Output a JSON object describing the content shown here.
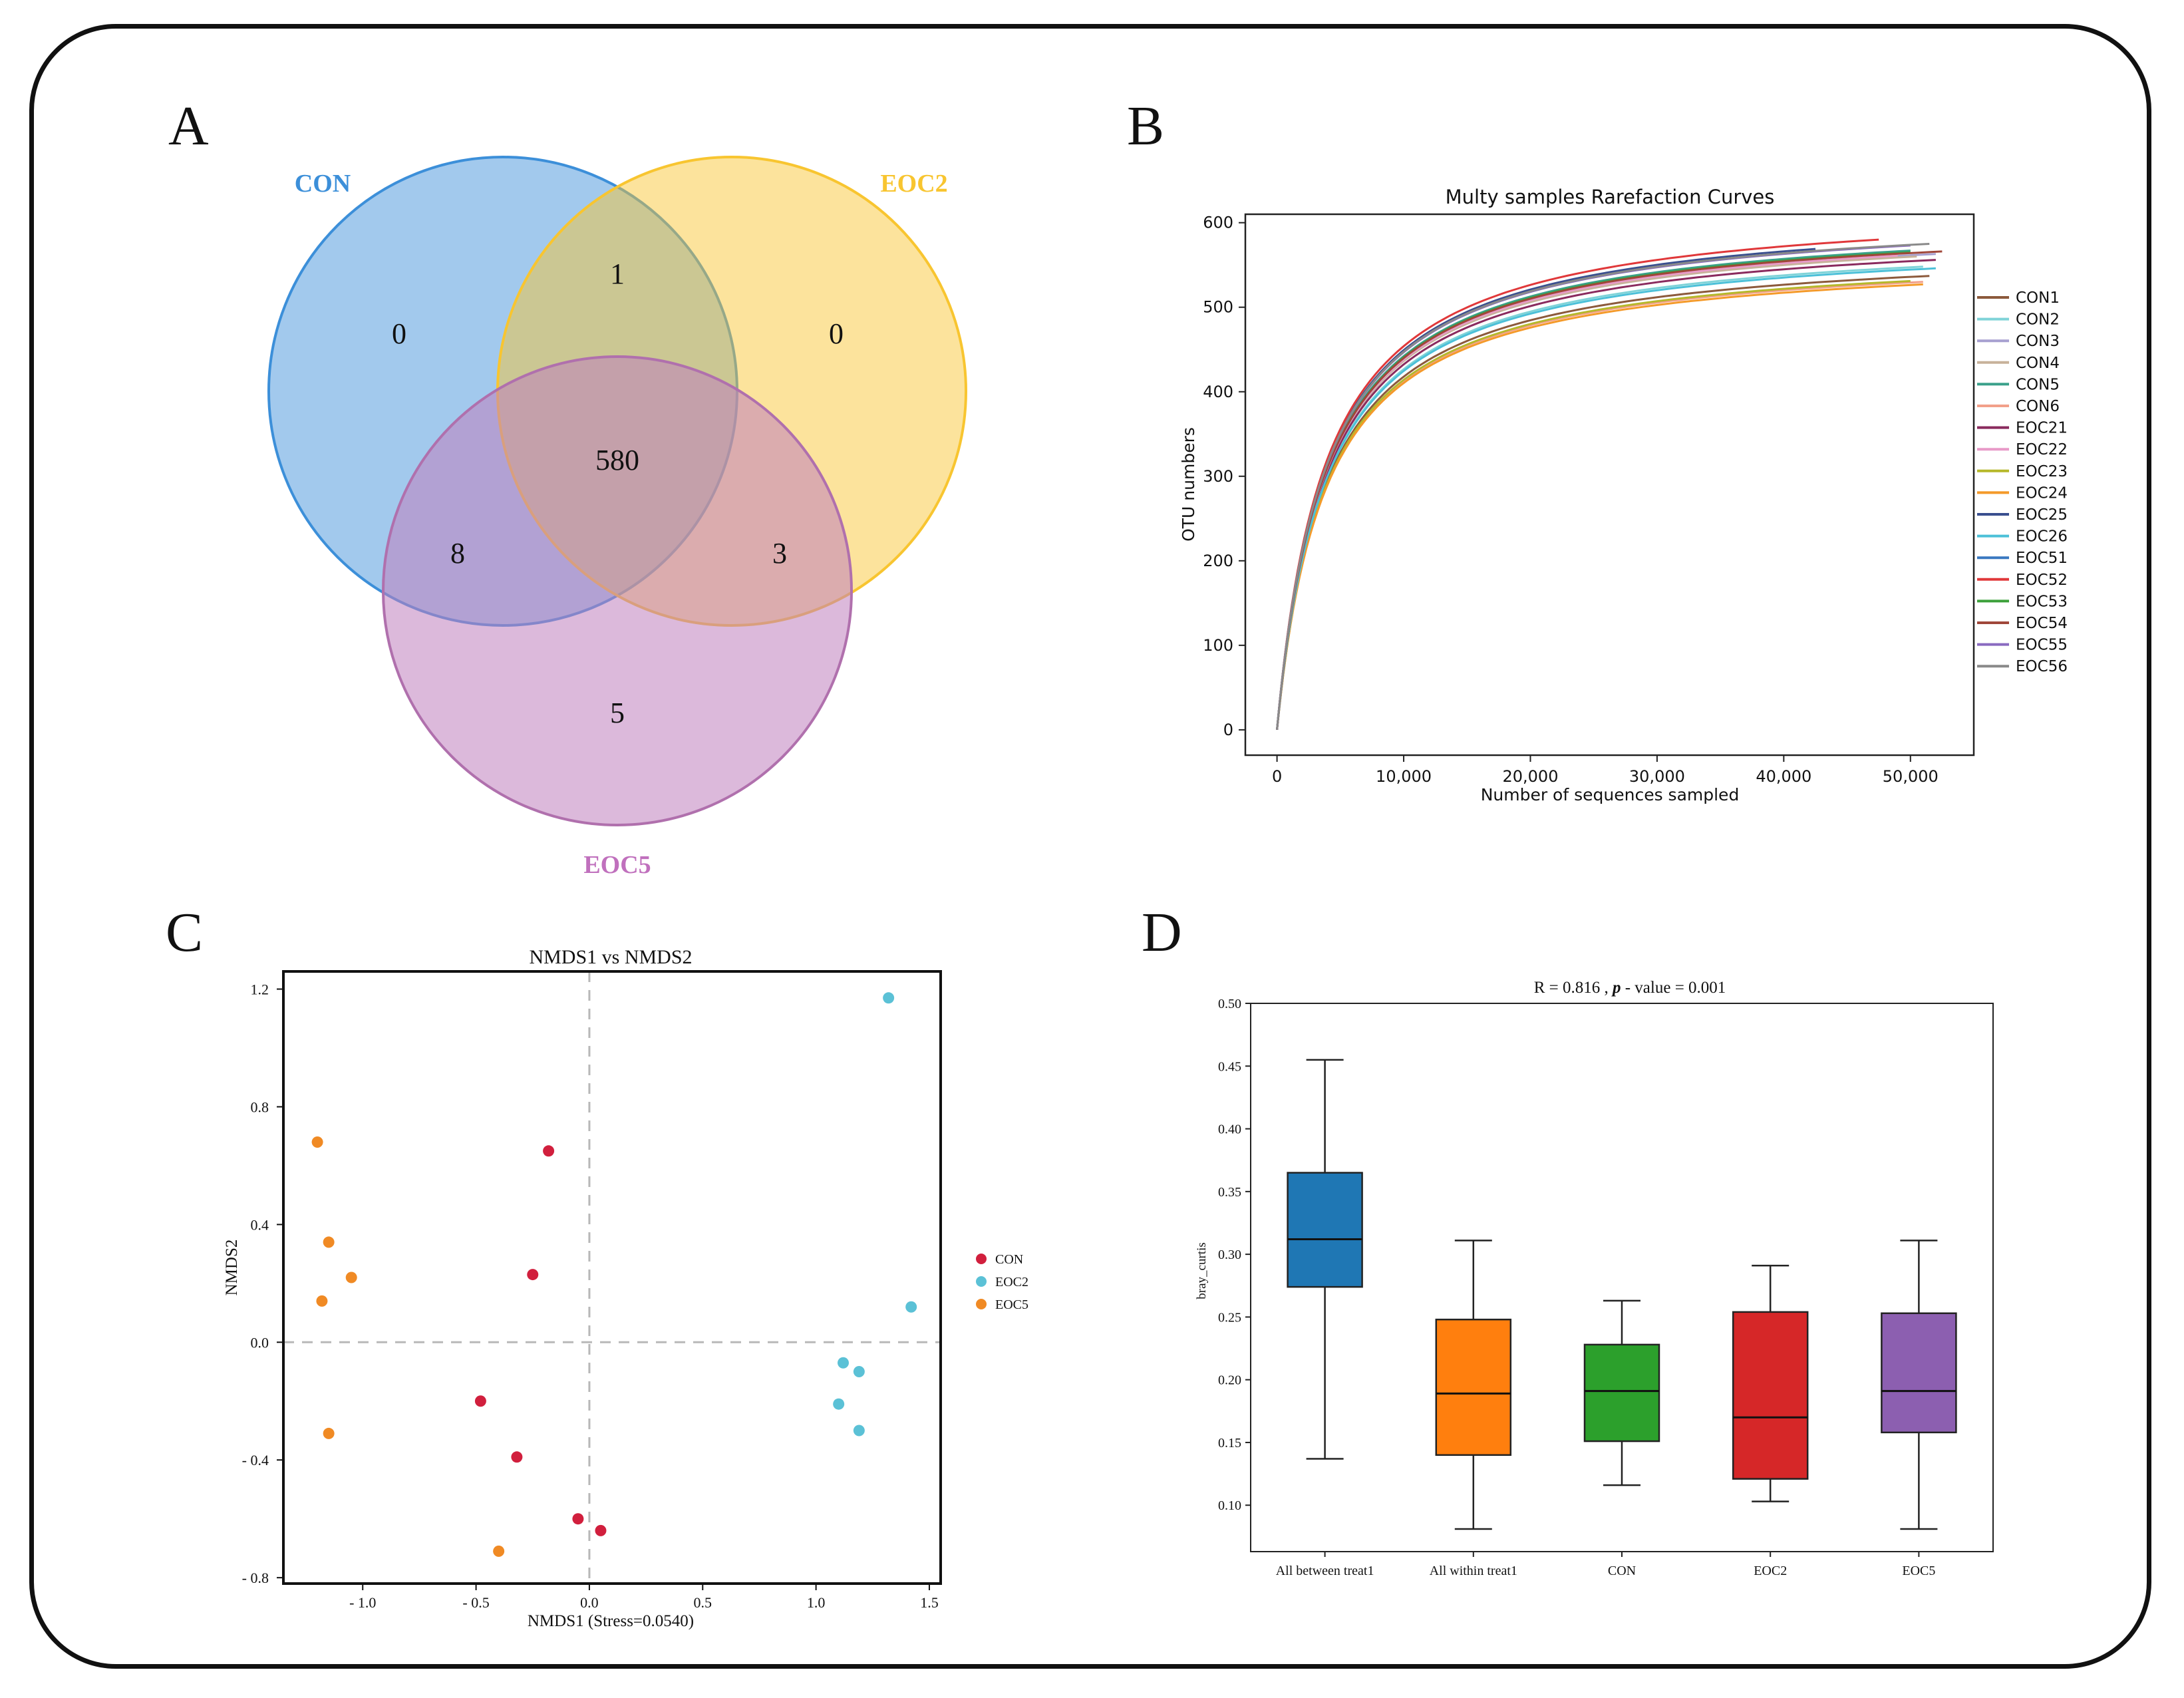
{
  "panels": {
    "a": "A",
    "b": "B",
    "c": "C",
    "d": "D"
  },
  "colors": {
    "con": "#3c8fd9",
    "eoc2": "#f8c530",
    "eoc5": "#c080bd",
    "scatter_con": "#d11f3d",
    "scatter_eoc2": "#5bc1d6",
    "scatter_eoc5": "#f08a24"
  },
  "chart_data": [
    {
      "type": "venn",
      "sets": [
        "CON",
        "EOC2",
        "EOC5"
      ],
      "regions": {
        "con_only": "0",
        "eoc2_only": "0",
        "eoc5_only": "5",
        "con_eoc2": "1",
        "con_eoc5": "8",
        "eoc2_eoc5": "3",
        "all": "580"
      }
    },
    {
      "type": "line",
      "title": "Multy samples Rarefaction Curves",
      "xlabel": "Number of sequences sampled",
      "ylabel": "OTU numbers",
      "xlim": [
        -2500,
        55000
      ],
      "ylim": [
        -30,
        610
      ],
      "x_ticks": [
        0,
        10000,
        20000,
        30000,
        40000,
        50000
      ],
      "x_tick_labels": [
        "0",
        "10,000",
        "20,000",
        "30,000",
        "40,000",
        "50,000"
      ],
      "y_ticks": [
        0,
        100,
        200,
        300,
        400,
        500,
        600
      ],
      "y_tick_labels": [
        "0",
        "100",
        "200",
        "300",
        "400",
        "500",
        "600"
      ],
      "series": [
        {
          "name": "CON1",
          "color": "#8c5a3c",
          "max_x": 51500,
          "final": 537
        },
        {
          "name": "CON2",
          "color": "#7fd3d8",
          "max_x": 51000,
          "final": 548
        },
        {
          "name": "CON3",
          "color": "#a7a0d0",
          "max_x": 52000,
          "final": 563
        },
        {
          "name": "CON4",
          "color": "#c8b29a",
          "max_x": 50500,
          "final": 560
        },
        {
          "name": "CON5",
          "color": "#3aa08a",
          "max_x": 50000,
          "final": 567
        },
        {
          "name": "CON6",
          "color": "#f2a08a",
          "max_x": 51000,
          "final": 530
        },
        {
          "name": "EOC21",
          "color": "#8a2b5e",
          "max_x": 52000,
          "final": 556
        },
        {
          "name": "EOC22",
          "color": "#e89ac8",
          "max_x": 49000,
          "final": 561
        },
        {
          "name": "EOC23",
          "color": "#b6b82a",
          "max_x": 50000,
          "final": 531
        },
        {
          "name": "EOC24",
          "color": "#f49a2a",
          "max_x": 51000,
          "final": 527
        },
        {
          "name": "EOC25",
          "color": "#3a4f8f",
          "max_x": 42500,
          "final": 569
        },
        {
          "name": "EOC26",
          "color": "#4cc0d8",
          "max_x": 52000,
          "final": 546
        },
        {
          "name": "EOC51",
          "color": "#3a78c0",
          "max_x": 48500,
          "final": 572
        },
        {
          "name": "EOC52",
          "color": "#e0383a",
          "max_x": 47500,
          "final": 580
        },
        {
          "name": "EOC53",
          "color": "#3ca03a",
          "max_x": 50000,
          "final": 565
        },
        {
          "name": "EOC54",
          "color": "#a0473a",
          "max_x": 52500,
          "final": 566
        },
        {
          "name": "EOC55",
          "color": "#8a6ac0",
          "max_x": 50000,
          "final": 573
        },
        {
          "name": "EOC56",
          "color": "#8a8a8a",
          "max_x": 51500,
          "final": 575
        }
      ]
    },
    {
      "type": "scatter",
      "title": "NMDS1 vs NMDS2",
      "xlabel": "NMDS1 (Stress=0.0540)",
      "ylabel": "NMDS2",
      "xlim": [
        -1.35,
        1.55
      ],
      "ylim": [
        -0.82,
        1.26
      ],
      "x_ticks": [
        -1.0,
        -0.5,
        0.0,
        0.5,
        1.0,
        1.5
      ],
      "x_tick_labels": [
        "- 1.0",
        "- 0.5",
        "0.0",
        "0.5",
        "1.0",
        "1.5"
      ],
      "y_ticks": [
        -0.8,
        -0.4,
        0.0,
        0.4,
        0.8,
        1.2
      ],
      "y_tick_labels": [
        "- 0.8",
        "- 0.4",
        "0.0",
        "0.4",
        "0.8",
        "1.2"
      ],
      "legend": [
        "CON",
        "EOC2",
        "EOC5"
      ],
      "series": [
        {
          "name": "CON",
          "points": [
            [
              -0.18,
              0.65
            ],
            [
              -0.25,
              0.23
            ],
            [
              -0.48,
              -0.2
            ],
            [
              -0.32,
              -0.39
            ],
            [
              -0.05,
              -0.6
            ],
            [
              0.05,
              -0.64
            ]
          ]
        },
        {
          "name": "EOC2",
          "points": [
            [
              1.32,
              1.17
            ],
            [
              1.42,
              0.12
            ],
            [
              1.12,
              -0.07
            ],
            [
              1.19,
              -0.1
            ],
            [
              1.1,
              -0.21
            ],
            [
              1.19,
              -0.3
            ]
          ]
        },
        {
          "name": "EOC5",
          "points": [
            [
              -1.2,
              0.68
            ],
            [
              -1.15,
              0.34
            ],
            [
              -1.05,
              0.22
            ],
            [
              -1.18,
              0.14
            ],
            [
              -1.15,
              -0.31
            ],
            [
              -0.4,
              -0.71
            ]
          ]
        }
      ]
    },
    {
      "type": "box",
      "title": "R = 0.816 , p - value = 0.001",
      "title_parts": [
        "R = 0.816 , ",
        "p",
        " - value = 0.001"
      ],
      "ylabel": "bray_curtis",
      "ylim": [
        0.063,
        0.5
      ],
      "y_ticks": [
        0.1,
        0.15,
        0.2,
        0.25,
        0.3,
        0.35,
        0.4,
        0.45,
        0.5
      ],
      "y_tick_labels": [
        "0.10",
        "0.15",
        "0.20",
        "0.25",
        "0.30",
        "0.35",
        "0.40",
        "0.45",
        "0.50"
      ],
      "categories": [
        "All between treat1",
        "All within treat1",
        "CON",
        "EOC2",
        "EOC5"
      ],
      "boxes": [
        {
          "name": "All between treat1",
          "color": "#1f77b4",
          "min": 0.137,
          "q1": 0.274,
          "median": 0.312,
          "q3": 0.365,
          "max": 0.455
        },
        {
          "name": "All within treat1",
          "color": "#ff7f0e",
          "min": 0.081,
          "q1": 0.14,
          "median": 0.189,
          "q3": 0.248,
          "max": 0.311
        },
        {
          "name": "CON",
          "color": "#2ca02c",
          "min": 0.116,
          "q1": 0.151,
          "median": 0.191,
          "q3": 0.228,
          "max": 0.263
        },
        {
          "name": "EOC2",
          "color": "#d62728",
          "min": 0.103,
          "q1": 0.121,
          "median": 0.17,
          "q3": 0.254,
          "max": 0.291
        },
        {
          "name": "EOC5",
          "color": "#8c5fb0",
          "min": 0.081,
          "q1": 0.158,
          "median": 0.191,
          "q3": 0.253,
          "max": 0.311
        }
      ]
    }
  ]
}
